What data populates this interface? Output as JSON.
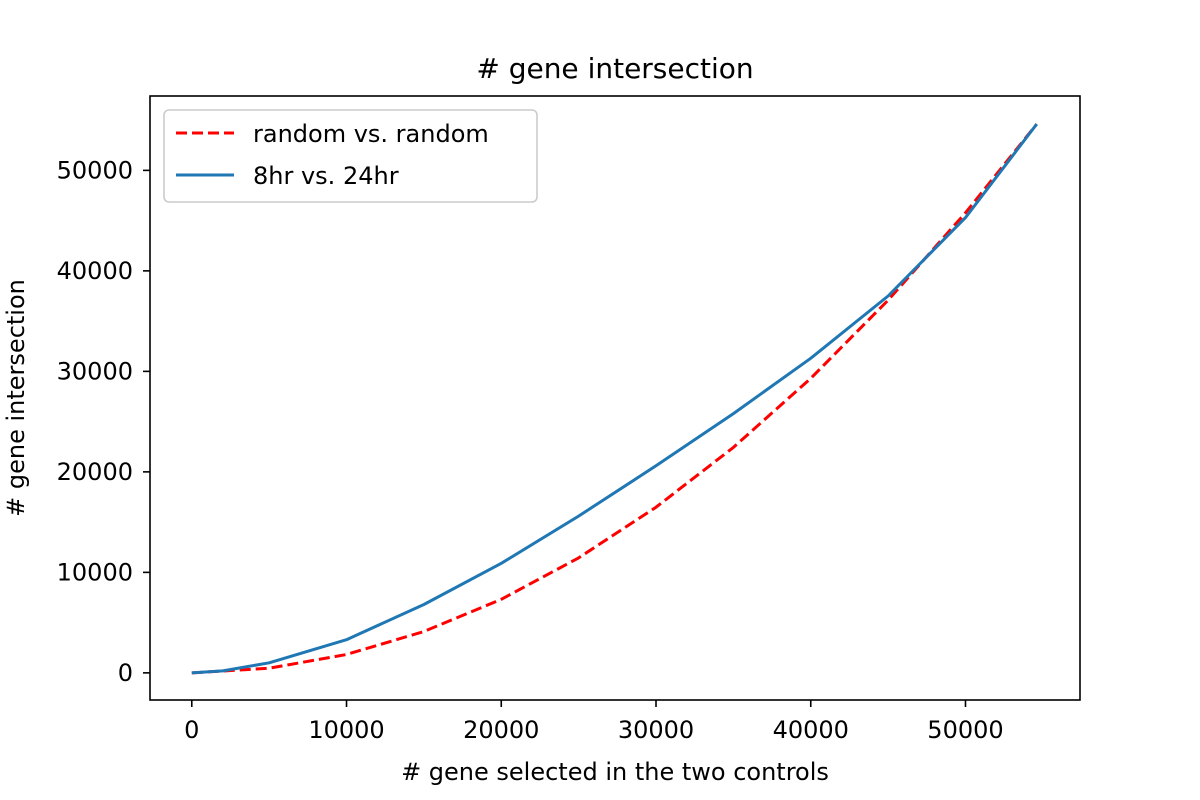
{
  "chart_data": {
    "type": "line",
    "title": "# gene intersection",
    "xlabel": "# gene selected in the two controls",
    "ylabel": "# gene intersection",
    "xlim": [
      -2700,
      57400
    ],
    "ylim": [
      -2700,
      57400
    ],
    "xticks": [
      0,
      10000,
      20000,
      30000,
      40000,
      50000
    ],
    "yticks": [
      0,
      10000,
      20000,
      30000,
      40000,
      50000
    ],
    "xtick_labels": [
      "0",
      "10000",
      "20000",
      "30000",
      "40000",
      "50000"
    ],
    "ytick_labels": [
      "0",
      "10000",
      "20000",
      "30000",
      "40000",
      "50000"
    ],
    "grid": false,
    "legend_position": "top-left",
    "series": [
      {
        "name": "random vs. random",
        "color": "#ff0000",
        "style": "dashed",
        "x": [
          0,
          5000,
          10000,
          15000,
          20000,
          25000,
          30000,
          35000,
          40000,
          45000,
          50000,
          54600
        ],
        "y": [
          0,
          460,
          1830,
          4120,
          7320,
          11440,
          16480,
          22430,
          29300,
          37080,
          45780,
          54600
        ]
      },
      {
        "name": "8hr vs. 24hr",
        "color": "#1f77b4",
        "style": "solid",
        "x": [
          0,
          2000,
          5000,
          10000,
          15000,
          20000,
          25000,
          30000,
          35000,
          40000,
          45000,
          50000,
          54600
        ],
        "y": [
          0,
          200,
          1000,
          3300,
          6800,
          10900,
          15600,
          20600,
          25800,
          31300,
          37500,
          45300,
          54600
        ]
      }
    ]
  }
}
